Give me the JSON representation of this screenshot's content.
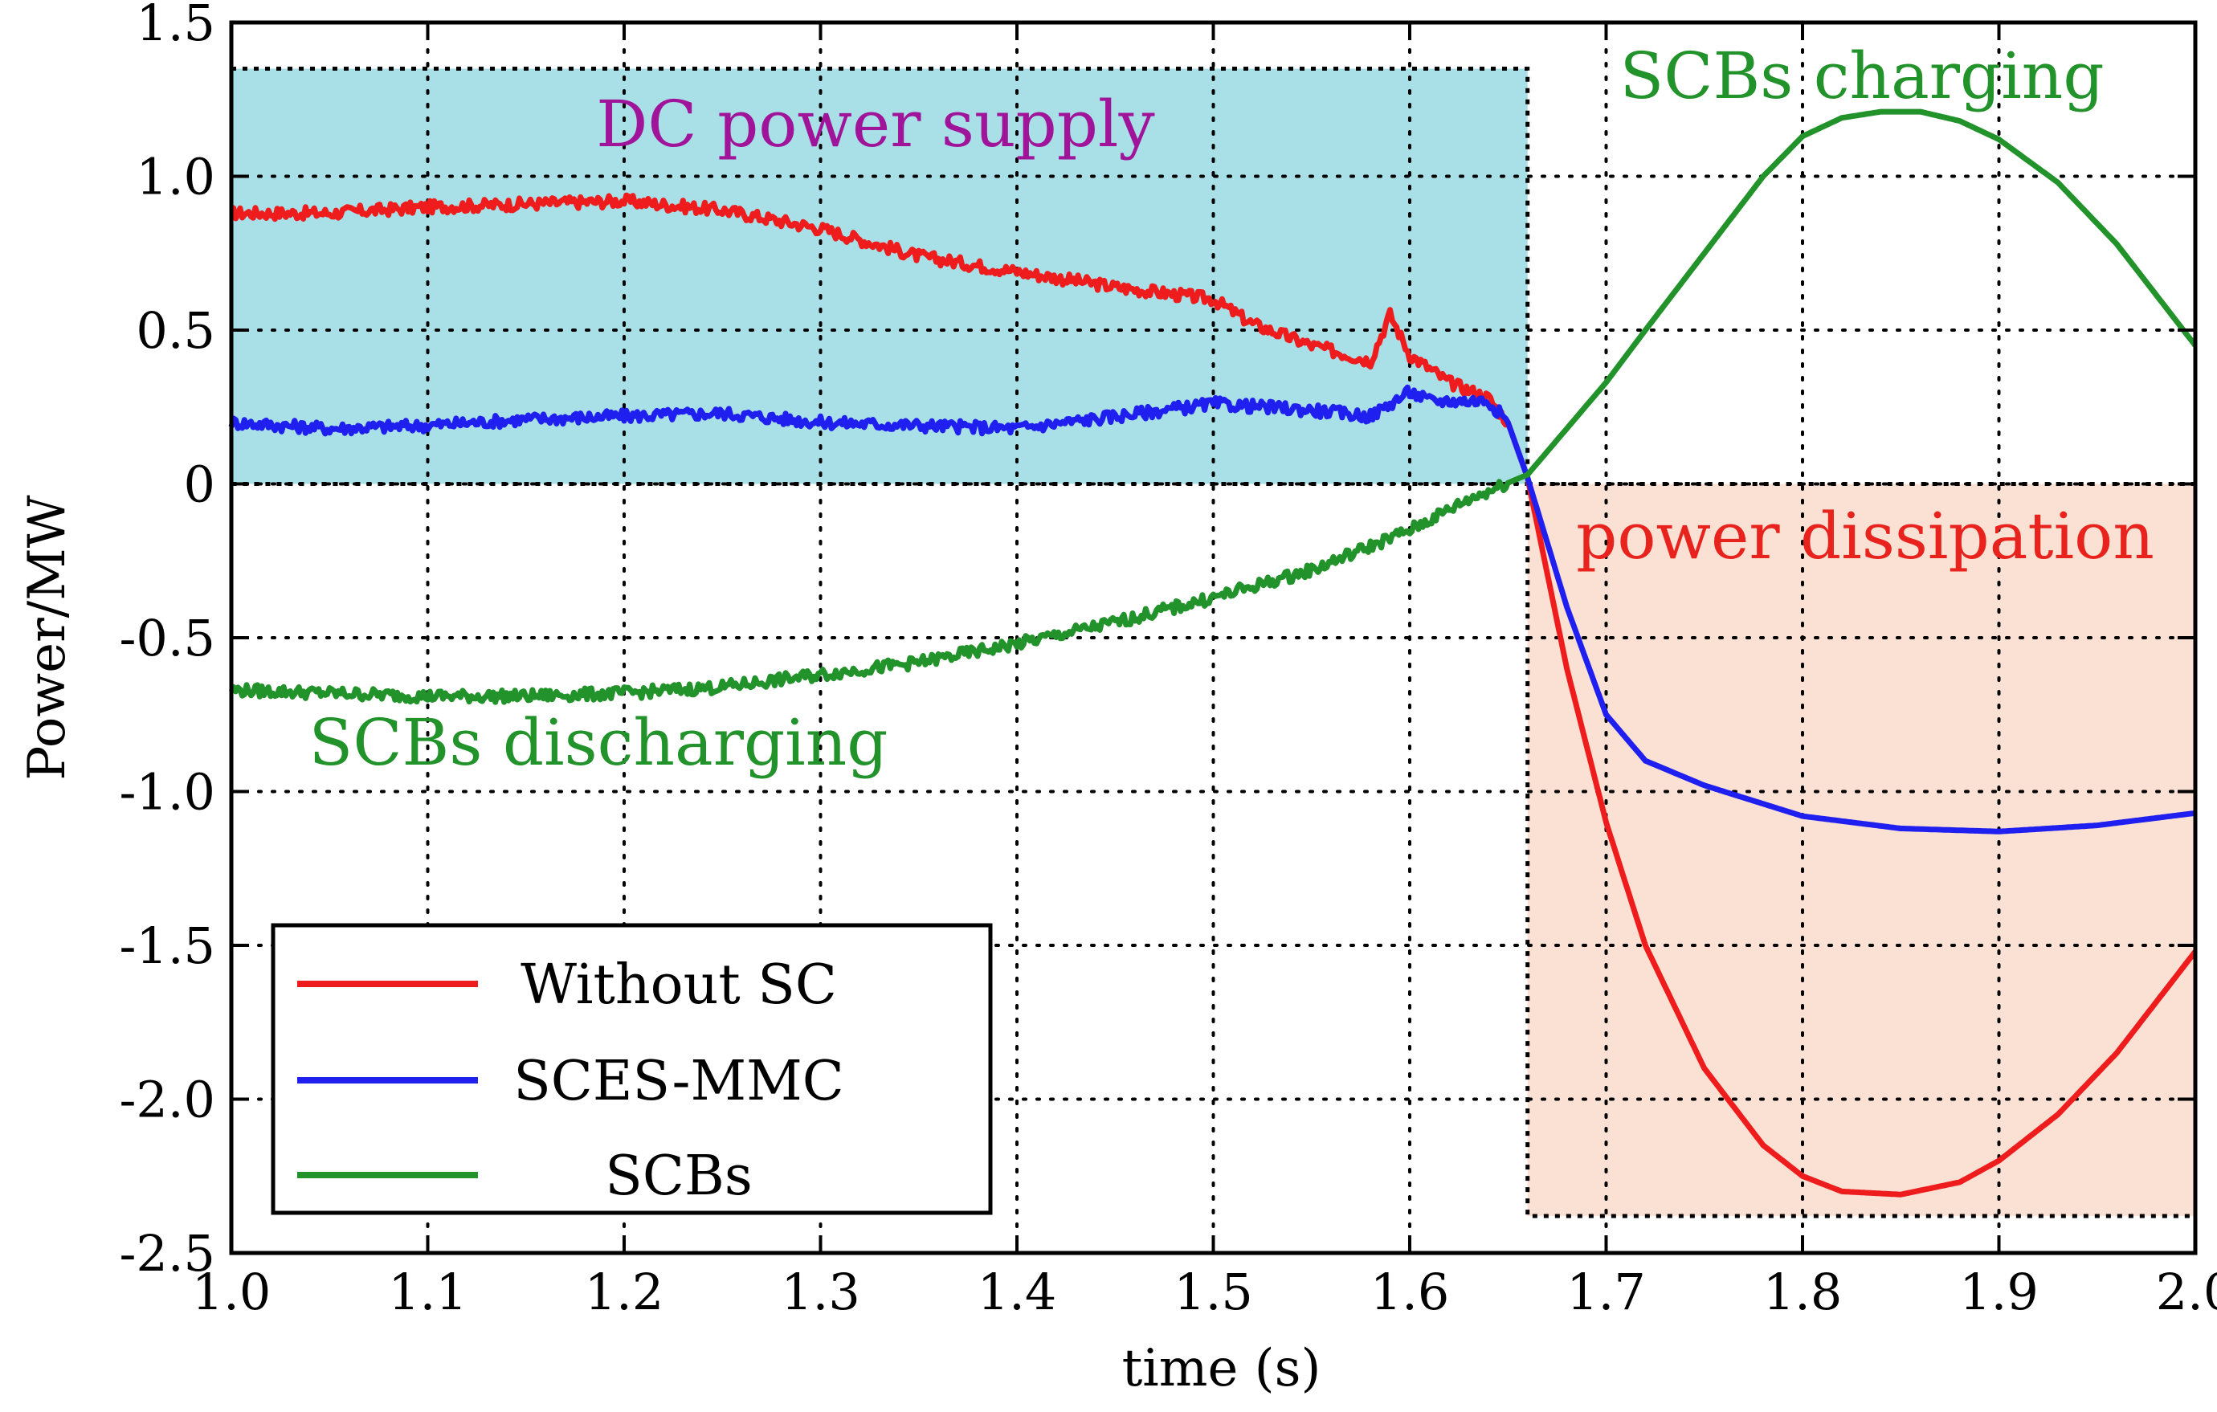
{
  "chart_data": {
    "type": "line",
    "xlabel": "time (s)",
    "ylabel": "Power/MW",
    "xlim": [
      1.0,
      2.0
    ],
    "ylim": [
      -2.5,
      1.5
    ],
    "xticks": [
      1.0,
      1.1,
      1.2,
      1.3,
      1.4,
      1.5,
      1.6,
      1.7,
      1.8,
      1.9,
      2.0
    ],
    "xtick_labels": [
      "1.0",
      "1.1",
      "1.2",
      "1.3",
      "1.4",
      "1.5",
      "1.6",
      "1.7",
      "1.8",
      "1.9",
      "2.0"
    ],
    "yticks": [
      1.5,
      1.0,
      0.5,
      0,
      -0.5,
      -1.0,
      -1.5,
      -2.0,
      -2.5
    ],
    "ytick_labels": [
      "1.5",
      "1.0",
      "0.5",
      "0",
      "-0.5",
      "-1.0",
      "-1.5",
      "-2.0",
      "-2.5"
    ],
    "grid": true,
    "legend_position": "bottom-left",
    "regions": [
      {
        "label": "DC power supply",
        "x": [
          1.0,
          1.66
        ],
        "y": [
          0,
          1.35
        ],
        "fill": "#a9dfe6",
        "label_color": "#a0149a"
      },
      {
        "label": "power dissipation",
        "x": [
          1.66,
          2.0
        ],
        "y": [
          -2.38,
          0
        ],
        "fill": "#fbe1d3",
        "label_color": "#e8231e"
      }
    ],
    "annotations": [
      {
        "text": "SCBs charging",
        "color": "#22922a"
      },
      {
        "text": "SCBs discharging",
        "color": "#22922a"
      }
    ],
    "series": [
      {
        "name": "Without SC",
        "color": "#ee1c1c",
        "x": [
          1.0,
          1.05,
          1.1,
          1.15,
          1.2,
          1.25,
          1.3,
          1.35,
          1.4,
          1.45,
          1.5,
          1.52,
          1.55,
          1.58,
          1.59,
          1.6,
          1.62,
          1.64,
          1.65,
          1.66,
          1.68,
          1.7,
          1.72,
          1.75,
          1.78,
          1.8,
          1.82,
          1.85,
          1.88,
          1.9,
          1.93,
          1.96,
          2.0
        ],
        "y": [
          0.88,
          0.88,
          0.9,
          0.91,
          0.92,
          0.89,
          0.83,
          0.74,
          0.69,
          0.64,
          0.6,
          0.52,
          0.45,
          0.4,
          0.55,
          0.42,
          0.33,
          0.28,
          0.2,
          0.02,
          -0.6,
          -1.1,
          -1.5,
          -1.9,
          -2.15,
          -2.25,
          -2.3,
          -2.31,
          -2.27,
          -2.2,
          -2.05,
          -1.85,
          -1.52
        ]
      },
      {
        "name": "SCES-MMC",
        "color": "#1f1ff0",
        "x": [
          1.0,
          1.05,
          1.1,
          1.15,
          1.2,
          1.25,
          1.3,
          1.35,
          1.4,
          1.45,
          1.5,
          1.55,
          1.58,
          1.6,
          1.61,
          1.62,
          1.64,
          1.65,
          1.66,
          1.68,
          1.7,
          1.72,
          1.75,
          1.8,
          1.85,
          1.9,
          1.95,
          2.0
        ],
        "y": [
          0.2,
          0.18,
          0.19,
          0.21,
          0.22,
          0.23,
          0.2,
          0.19,
          0.18,
          0.22,
          0.26,
          0.24,
          0.22,
          0.3,
          0.27,
          0.27,
          0.27,
          0.2,
          0.02,
          -0.4,
          -0.75,
          -0.9,
          -0.98,
          -1.08,
          -1.12,
          -1.13,
          -1.11,
          -1.07
        ]
      },
      {
        "name": "SCBs",
        "color": "#22922a",
        "x": [
          1.0,
          1.05,
          1.1,
          1.15,
          1.2,
          1.25,
          1.3,
          1.35,
          1.4,
          1.45,
          1.5,
          1.55,
          1.6,
          1.63,
          1.66,
          1.68,
          1.7,
          1.72,
          1.75,
          1.78,
          1.8,
          1.82,
          1.84,
          1.86,
          1.88,
          1.9,
          1.93,
          1.96,
          2.0
        ],
        "y": [
          -0.67,
          -0.68,
          -0.69,
          -0.69,
          -0.68,
          -0.66,
          -0.62,
          -0.58,
          -0.52,
          -0.45,
          -0.37,
          -0.28,
          -0.15,
          -0.05,
          0.03,
          0.18,
          0.33,
          0.5,
          0.75,
          1.0,
          1.13,
          1.19,
          1.21,
          1.21,
          1.18,
          1.12,
          0.98,
          0.78,
          0.45
        ]
      }
    ]
  }
}
